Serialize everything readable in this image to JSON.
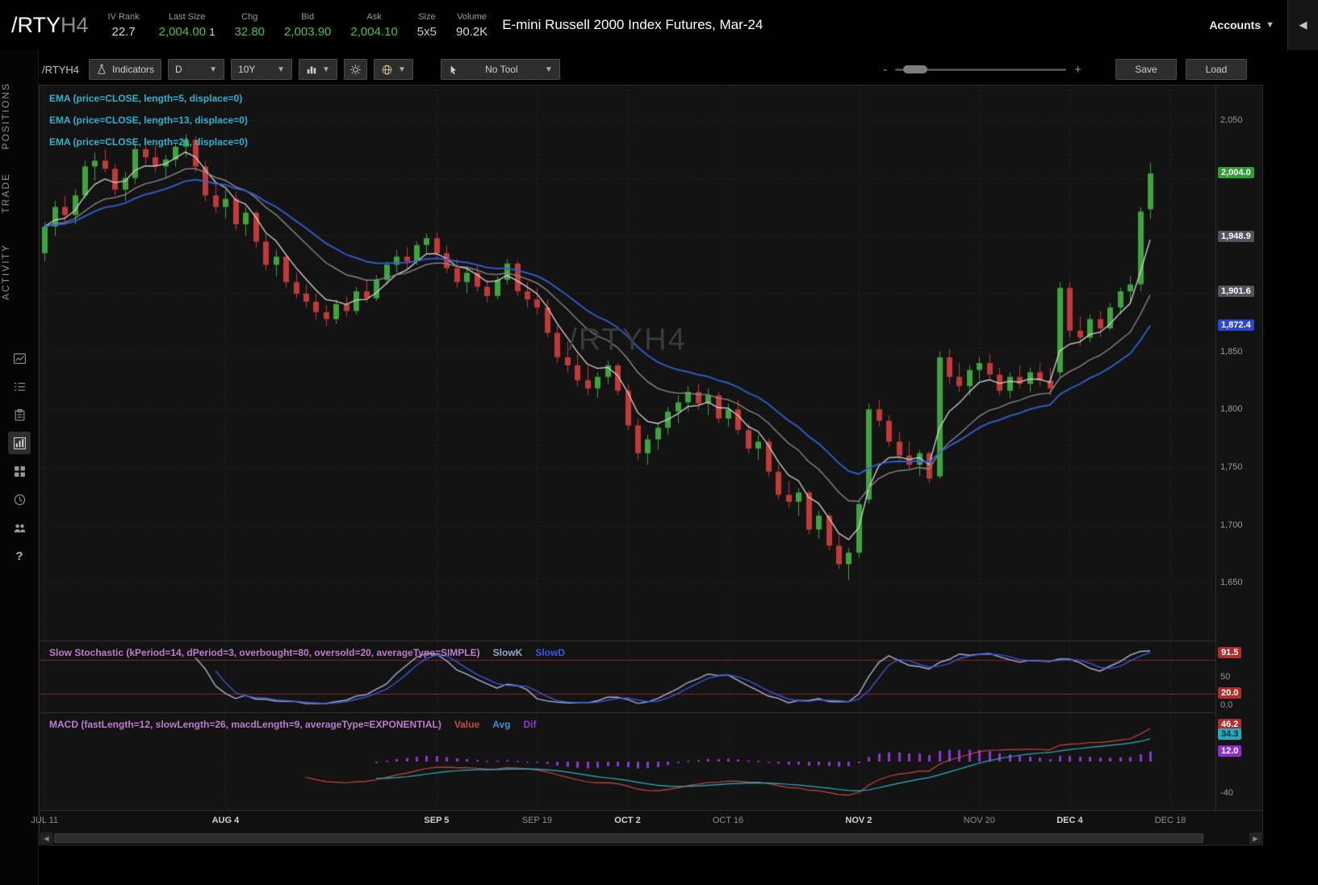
{
  "header": {
    "symbol": "/RTY",
    "symbol_suffix": "H4",
    "stats": [
      {
        "label": "IV Rank",
        "value": "22.7",
        "color": "#d8d8d8"
      },
      {
        "label": "Last Size",
        "value": "2,004.00",
        "value2": "1",
        "color": "#4fbf4f"
      },
      {
        "label": "Chg",
        "value": "32.80",
        "color": "#4fbf4f"
      },
      {
        "label": "Bid",
        "value": "2,003.90",
        "color": "#4fbf4f"
      },
      {
        "label": "Ask",
        "value": "2,004.10",
        "color": "#4fbf4f"
      },
      {
        "label": "Size",
        "value": "5x5",
        "color": "#c9c9c9"
      },
      {
        "label": "Volume",
        "value": "90.2K",
        "color": "#d8d8d8"
      }
    ],
    "description": "E-mini Russell 2000 Index Futures, Mar-24",
    "accounts_label": "Accounts",
    "collapse_glyph": "◀"
  },
  "sidebar": {
    "tabs": [
      "POSITIONS",
      "TRADE",
      "ACTIVITY"
    ],
    "icons": [
      "chart-doc",
      "list",
      "clipboard",
      "chart-grid",
      "widgets",
      "clock",
      "users",
      "help"
    ],
    "active_icon": "chart-grid",
    "help_glyph": "?"
  },
  "toolbar": {
    "symbol": "/RTYH4",
    "indicators": "Indicators",
    "timeframe": "D",
    "range": "10Y",
    "tool": "No Tool",
    "save": "Save",
    "load": "Load",
    "zoom_minus": "-",
    "zoom_plus": "+"
  },
  "studies": {
    "ema_labels": [
      "EMA (price=CLOSE, length=5, displace=0)",
      "EMA (price=CLOSE, length=13, displace=0)",
      "EMA (price=CLOSE, length=21, displace=0)"
    ],
    "ema_label_color": "#2fb0cf",
    "stoch_label": "Slow Stochastic (kPeriod=14, dPeriod=3, overbought=80, oversold=20, averageType=SIMPLE)",
    "stoch_label_color": "#bd7ccb",
    "slowk_label": "SlowK",
    "slowk_color": "#9aa6c6",
    "slowd_label": "SlowD",
    "slowd_color": "#4053e8",
    "macd_label": "MACD (fastLength=12, slowLength=26, macdLength=9, averageType=EXPONENTIAL)",
    "macd_label_color": "#bd7ccb",
    "value_label": "Value",
    "value_color": "#cf4545",
    "avg_label": "Avg",
    "avg_color": "#3f8fd9",
    "dif_label": "Dif",
    "dif_color": "#9135d6"
  },
  "chart_data": {
    "type": "candlestick",
    "symbol": "/RTYH4",
    "watermark": "/RTYH4",
    "slots": 117,
    "ema_lengths": [
      5,
      13,
      21
    ],
    "colors": {
      "up": "#3fa33f",
      "down": "#c13a3a",
      "grid": "#262626",
      "ema": [
        "#d4d4d4",
        "#8f8f8f",
        "#2e63d4"
      ],
      "slowk": "#aab4d2",
      "slowd": "#3c55e0",
      "ob_os_line": "#8b2525",
      "macd_value": "#cf4545",
      "macd_avg": "#2fb3c7",
      "macd_hist": "#9135d6",
      "watermark": "#3a3a3a"
    },
    "price_axis": {
      "min": 1600,
      "max": 2080,
      "grid_start": 1650,
      "grid_end": 2050,
      "grid_step": 50,
      "ticks": [
        {
          "label": "2,050",
          "value": 2050
        },
        {
          "label": "1,850",
          "value": 1850
        },
        {
          "label": "1,800",
          "value": 1800
        },
        {
          "label": "1,750",
          "value": 1750
        },
        {
          "label": "1,700",
          "value": 1700
        },
        {
          "label": "1,650",
          "value": 1650
        }
      ],
      "badges": [
        {
          "label": "2,004.0",
          "value": 2004.0,
          "bg": "#2f9e35",
          "fg": "#ffffff"
        },
        {
          "label": "1,948.9",
          "value": 1948.9,
          "bg": "#53555e",
          "fg": "#ffffff"
        },
        {
          "label": "1,901.6",
          "value": 1901.6,
          "bg": "#53555e",
          "fg": "#ffffff"
        },
        {
          "label": "1,872.4",
          "value": 1872.4,
          "bg": "#2b47d0",
          "fg": "#ffffff"
        }
      ]
    },
    "stoch_axis": {
      "min": -12,
      "max": 112,
      "overbought": 80,
      "oversold": 20,
      "ticks": [
        {
          "label": "50",
          "value": 50
        },
        {
          "label": "0.0",
          "value": 0
        }
      ],
      "badges": [
        {
          "label": "91.5",
          "value": 91.5,
          "bg": "#b22c2c",
          "fg": "#ffffff"
        },
        {
          "label": "20.0",
          "value": 20,
          "bg": "#b22c2c",
          "fg": "#ffffff"
        }
      ]
    },
    "macd_axis": {
      "min": -62,
      "max": 62,
      "ticks": [
        {
          "label": "-40",
          "value": -40
        }
      ],
      "badges": [
        {
          "label": "46.2",
          "value": 46.2,
          "bg": "#b22c2c",
          "fg": "#ffffff"
        },
        {
          "label": "34.3",
          "value": 34.3,
          "bg": "#23a8c0",
          "fg": "#06262c"
        },
        {
          "label": "12.0",
          "value": 12.0,
          "bg": "#8c2fd0",
          "fg": "#ffffff"
        }
      ]
    },
    "time_axis": [
      {
        "label": "JUL 11",
        "bar": 0,
        "bold": false
      },
      {
        "label": "AUG 4",
        "bar": 18,
        "bold": true
      },
      {
        "label": "SEP 5",
        "bar": 39,
        "bold": true
      },
      {
        "label": "SEP 19",
        "bar": 49,
        "bold": false
      },
      {
        "label": "OCT 2",
        "bar": 58,
        "bold": true
      },
      {
        "label": "OCT 16",
        "bar": 68,
        "bold": false
      },
      {
        "label": "NOV 2",
        "bar": 81,
        "bold": true
      },
      {
        "label": "NOV 20",
        "bar": 93,
        "bold": false
      },
      {
        "label": "DEC 4",
        "bar": 102,
        "bold": true
      },
      {
        "label": "DEC 18",
        "bar": 112,
        "bold": false
      }
    ],
    "candles": [
      [
        1935,
        1962,
        1928,
        1958
      ],
      [
        1958,
        1980,
        1950,
        1975
      ],
      [
        1975,
        1985,
        1962,
        1968
      ],
      [
        1968,
        1990,
        1960,
        1985
      ],
      [
        1985,
        2015,
        1982,
        2010
      ],
      [
        2010,
        2022,
        1998,
        2015
      ],
      [
        2015,
        2025,
        2005,
        2008
      ],
      [
        2008,
        2012,
        1985,
        1990
      ],
      [
        1990,
        2005,
        1980,
        2000
      ],
      [
        2000,
        2030,
        1995,
        2025
      ],
      [
        2025,
        2035,
        2012,
        2018
      ],
      [
        2018,
        2028,
        2005,
        2010
      ],
      [
        2010,
        2020,
        2000,
        2016
      ],
      [
        2016,
        2030,
        2010,
        2027
      ],
      [
        2027,
        2038,
        2018,
        2033
      ],
      [
        2033,
        2036,
        2005,
        2010
      ],
      [
        2010,
        2015,
        1980,
        1985
      ],
      [
        1985,
        1995,
        1970,
        1975
      ],
      [
        1975,
        1990,
        1965,
        1982
      ],
      [
        1982,
        1988,
        1955,
        1960
      ],
      [
        1960,
        1975,
        1950,
        1970
      ],
      [
        1970,
        1972,
        1940,
        1945
      ],
      [
        1945,
        1952,
        1920,
        1925
      ],
      [
        1925,
        1938,
        1915,
        1932
      ],
      [
        1932,
        1935,
        1905,
        1910
      ],
      [
        1910,
        1918,
        1896,
        1900
      ],
      [
        1900,
        1908,
        1888,
        1893
      ],
      [
        1893,
        1900,
        1878,
        1884
      ],
      [
        1884,
        1890,
        1872,
        1878
      ],
      [
        1878,
        1895,
        1874,
        1891
      ],
      [
        1891,
        1898,
        1880,
        1885
      ],
      [
        1885,
        1906,
        1882,
        1902
      ],
      [
        1902,
        1911,
        1892,
        1896
      ],
      [
        1896,
        1916,
        1894,
        1912
      ],
      [
        1912,
        1928,
        1908,
        1925
      ],
      [
        1925,
        1938,
        1918,
        1932
      ],
      [
        1932,
        1940,
        1922,
        1928
      ],
      [
        1928,
        1945,
        1925,
        1942
      ],
      [
        1942,
        1952,
        1935,
        1948
      ],
      [
        1948,
        1953,
        1930,
        1935
      ],
      [
        1935,
        1942,
        1918,
        1922
      ],
      [
        1922,
        1930,
        1905,
        1910
      ],
      [
        1910,
        1922,
        1900,
        1918
      ],
      [
        1918,
        1925,
        1902,
        1906
      ],
      [
        1906,
        1912,
        1892,
        1898
      ],
      [
        1898,
        1915,
        1895,
        1912
      ],
      [
        1912,
        1930,
        1908,
        1926
      ],
      [
        1926,
        1928,
        1898,
        1902
      ],
      [
        1902,
        1910,
        1888,
        1895
      ],
      [
        1895,
        1905,
        1882,
        1888
      ],
      [
        1888,
        1895,
        1862,
        1866
      ],
      [
        1866,
        1872,
        1840,
        1845
      ],
      [
        1845,
        1858,
        1832,
        1838
      ],
      [
        1838,
        1848,
        1820,
        1825
      ],
      [
        1825,
        1838,
        1812,
        1818
      ],
      [
        1818,
        1832,
        1810,
        1828
      ],
      [
        1828,
        1842,
        1822,
        1838
      ],
      [
        1838,
        1840,
        1812,
        1816
      ],
      [
        1816,
        1822,
        1782,
        1786
      ],
      [
        1786,
        1792,
        1756,
        1762
      ],
      [
        1762,
        1778,
        1752,
        1774
      ],
      [
        1774,
        1788,
        1765,
        1784
      ],
      [
        1784,
        1802,
        1778,
        1798
      ],
      [
        1798,
        1812,
        1788,
        1806
      ],
      [
        1806,
        1820,
        1798,
        1815
      ],
      [
        1815,
        1822,
        1800,
        1805
      ],
      [
        1805,
        1818,
        1795,
        1812
      ],
      [
        1812,
        1815,
        1788,
        1792
      ],
      [
        1792,
        1805,
        1785,
        1800
      ],
      [
        1800,
        1808,
        1778,
        1782
      ],
      [
        1782,
        1788,
        1762,
        1766
      ],
      [
        1766,
        1778,
        1756,
        1772
      ],
      [
        1772,
        1775,
        1742,
        1746
      ],
      [
        1746,
        1752,
        1722,
        1726
      ],
      [
        1726,
        1738,
        1715,
        1720
      ],
      [
        1720,
        1732,
        1708,
        1728
      ],
      [
        1728,
        1730,
        1692,
        1696
      ],
      [
        1696,
        1712,
        1688,
        1708
      ],
      [
        1708,
        1710,
        1678,
        1682
      ],
      [
        1682,
        1692,
        1662,
        1666
      ],
      [
        1666,
        1680,
        1652,
        1676
      ],
      [
        1676,
        1722,
        1672,
        1718
      ],
      [
        1722,
        1805,
        1718,
        1800
      ],
      [
        1800,
        1808,
        1785,
        1790
      ],
      [
        1790,
        1795,
        1768,
        1772
      ],
      [
        1772,
        1780,
        1755,
        1760
      ],
      [
        1760,
        1772,
        1748,
        1752
      ],
      [
        1752,
        1765,
        1742,
        1762
      ],
      [
        1762,
        1764,
        1736,
        1740
      ],
      [
        1742,
        1850,
        1740,
        1845
      ],
      [
        1845,
        1852,
        1822,
        1828
      ],
      [
        1828,
        1840,
        1815,
        1820
      ],
      [
        1820,
        1838,
        1812,
        1834
      ],
      [
        1834,
        1845,
        1825,
        1840
      ],
      [
        1840,
        1848,
        1826,
        1830
      ],
      [
        1830,
        1836,
        1812,
        1816
      ],
      [
        1816,
        1832,
        1810,
        1828
      ],
      [
        1828,
        1838,
        1818,
        1822
      ],
      [
        1822,
        1836,
        1815,
        1832
      ],
      [
        1832,
        1840,
        1820,
        1825
      ],
      [
        1825,
        1836,
        1812,
        1818
      ],
      [
        1832,
        1910,
        1828,
        1905
      ],
      [
        1905,
        1910,
        1862,
        1868
      ],
      [
        1868,
        1880,
        1855,
        1862
      ],
      [
        1862,
        1882,
        1858,
        1878
      ],
      [
        1878,
        1885,
        1862,
        1870
      ],
      [
        1870,
        1892,
        1868,
        1888
      ],
      [
        1888,
        1905,
        1882,
        1902
      ],
      [
        1902,
        1915,
        1892,
        1908
      ],
      [
        1908,
        1975,
        1902,
        1971
      ],
      [
        1973,
        2013,
        1965,
        2004
      ]
    ]
  }
}
